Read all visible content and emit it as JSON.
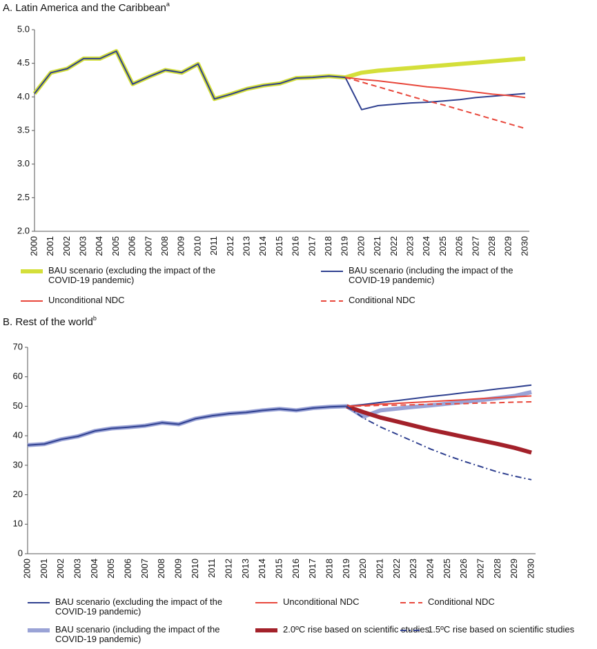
{
  "chart_data": [
    {
      "type": "line",
      "title": "A. Latin America and the Caribbean",
      "title_note": "a",
      "categories": [
        "2000",
        "2001",
        "2002",
        "2003",
        "2004",
        "2005",
        "2006",
        "2007",
        "2008",
        "2009",
        "2010",
        "2011",
        "2012",
        "2013",
        "2014",
        "2015",
        "2016",
        "2017",
        "2018",
        "2019",
        "2020",
        "2021",
        "2022",
        "2023",
        "2024",
        "2025",
        "2026",
        "2027",
        "2028",
        "2029",
        "2030"
      ],
      "ylim": [
        2,
        5
      ],
      "yticks": [
        {
          "value": 2,
          "label": "2.0"
        },
        2.5,
        {
          "value": 3,
          "label": "3.0"
        },
        3.5,
        {
          "value": 4,
          "label": "4.0"
        },
        4.5,
        {
          "value": 5,
          "label": "5.0"
        }
      ],
      "series": [
        {
          "name": "BAU scenario (excluding the impact of the COVID-19 pandemic)",
          "color": "#d4df3a",
          "thick": true,
          "values": [
            4.05,
            4.36,
            4.42,
            4.57,
            4.57,
            4.68,
            4.19,
            4.3,
            4.4,
            4.36,
            4.49,
            3.97,
            4.04,
            4.12,
            4.17,
            4.2,
            4.28,
            4.29,
            4.31,
            4.29,
            4.36,
            4.39,
            4.41,
            4.43,
            4.45,
            4.47,
            4.49,
            4.51,
            4.53,
            4.55,
            4.57
          ]
        },
        {
          "name": "BAU scenario (including the impact of the COVID-19 pandemic)",
          "color": "#2e3f8f",
          "values": [
            4.05,
            4.36,
            4.42,
            4.57,
            4.57,
            4.68,
            4.19,
            4.3,
            4.4,
            4.36,
            4.49,
            3.97,
            4.04,
            4.12,
            4.17,
            4.2,
            4.28,
            4.29,
            4.31,
            4.29,
            3.81,
            3.87,
            3.89,
            3.91,
            3.92,
            3.94,
            3.96,
            3.99,
            4.01,
            4.03,
            4.05
          ]
        },
        {
          "name": "Unconditional NDC",
          "color": "#e8463a",
          "values": [
            null,
            null,
            null,
            null,
            null,
            null,
            null,
            null,
            null,
            null,
            null,
            null,
            null,
            null,
            null,
            null,
            null,
            null,
            null,
            4.29,
            4.26,
            4.24,
            4.21,
            4.18,
            4.15,
            4.13,
            4.1,
            4.07,
            4.04,
            4.02,
            3.99
          ]
        },
        {
          "name": "Conditional NDC",
          "color": "#e8463a",
          "dash": "dashed",
          "values": [
            null,
            null,
            null,
            null,
            null,
            null,
            null,
            null,
            null,
            null,
            null,
            null,
            null,
            null,
            null,
            null,
            null,
            null,
            null,
            4.29,
            4.22,
            4.15,
            4.08,
            4.01,
            3.94,
            3.88,
            3.81,
            3.74,
            3.67,
            3.6,
            3.53
          ]
        }
      ]
    },
    {
      "type": "line",
      "title": "B. Rest of the world",
      "title_note": "b",
      "categories": [
        "2000",
        "2001",
        "2002",
        "2003",
        "2004",
        "2005",
        "2006",
        "2007",
        "2008",
        "2009",
        "2010",
        "2011",
        "2012",
        "2013",
        "2014",
        "2015",
        "2016",
        "2017",
        "2018",
        "2019",
        "2020",
        "2021",
        "2022",
        "2023",
        "2024",
        "2025",
        "2026",
        "2027",
        "2028",
        "2029",
        "2030"
      ],
      "ylim": [
        0,
        70
      ],
      "yticks": [
        0,
        10,
        20,
        30,
        40,
        50,
        60,
        70
      ],
      "series": [
        {
          "name": "BAU scenario (excluding the impact of the COVID-19 pandemic)",
          "color": "#2e3f8f",
          "values": [
            36.8,
            37.2,
            38.8,
            39.8,
            41.6,
            42.5,
            42.9,
            43.4,
            44.4,
            43.9,
            45.8,
            46.8,
            47.5,
            47.9,
            48.6,
            49.1,
            48.6,
            49.4,
            49.8,
            50.0,
            50.6,
            51.3,
            51.9,
            52.6,
            53.3,
            53.9,
            54.6,
            55.2,
            55.9,
            56.5,
            57.2
          ]
        },
        {
          "name": "Unconditional NDC",
          "color": "#e8463a",
          "values": [
            null,
            null,
            null,
            null,
            null,
            null,
            null,
            null,
            null,
            null,
            null,
            null,
            null,
            null,
            null,
            null,
            null,
            null,
            null,
            50.0,
            50.3,
            50.7,
            51.0,
            51.3,
            51.6,
            51.9,
            52.2,
            52.6,
            52.9,
            53.2,
            53.5
          ]
        },
        {
          "name": "Conditional NDC",
          "color": "#e8463a",
          "dash": "dashed",
          "values": [
            null,
            null,
            null,
            null,
            null,
            null,
            null,
            null,
            null,
            null,
            null,
            null,
            null,
            null,
            null,
            null,
            null,
            null,
            null,
            50.0,
            50.1,
            50.3,
            50.4,
            50.5,
            50.7,
            50.8,
            50.9,
            51.1,
            51.2,
            51.4,
            51.5
          ]
        },
        {
          "name": "BAU scenario (including the impact of the COVID-19 pandemic)",
          "color": "#9aa3d6",
          "thick": true,
          "values": [
            36.8,
            37.2,
            38.8,
            39.8,
            41.6,
            42.5,
            42.9,
            43.4,
            44.4,
            43.9,
            45.8,
            46.8,
            47.5,
            47.9,
            48.6,
            49.1,
            48.6,
            49.4,
            49.8,
            50.0,
            46.5,
            48.6,
            49.2,
            49.8,
            50.3,
            50.9,
            51.5,
            52.1,
            52.8,
            53.5,
            54.8
          ]
        },
        {
          "name": "2.0ºC rise based on scientific studies",
          "color": "#a3212a",
          "thick": true,
          "values": [
            null,
            null,
            null,
            null,
            null,
            null,
            null,
            null,
            null,
            null,
            null,
            null,
            null,
            null,
            null,
            null,
            null,
            null,
            null,
            50.0,
            48.0,
            46.2,
            44.8,
            43.4,
            42.0,
            40.8,
            39.6,
            38.4,
            37.2,
            35.9,
            34.3
          ]
        },
        {
          "name": "1.5ºC rise based on scientific studies",
          "color": "#2e3f8f",
          "dash": "dash-dot",
          "values": [
            null,
            null,
            null,
            null,
            null,
            null,
            null,
            null,
            null,
            null,
            null,
            null,
            null,
            null,
            null,
            null,
            null,
            null,
            null,
            50.0,
            46.0,
            43.0,
            40.5,
            38.0,
            35.5,
            33.3,
            31.3,
            29.5,
            27.7,
            26.3,
            25.1
          ]
        }
      ]
    }
  ]
}
